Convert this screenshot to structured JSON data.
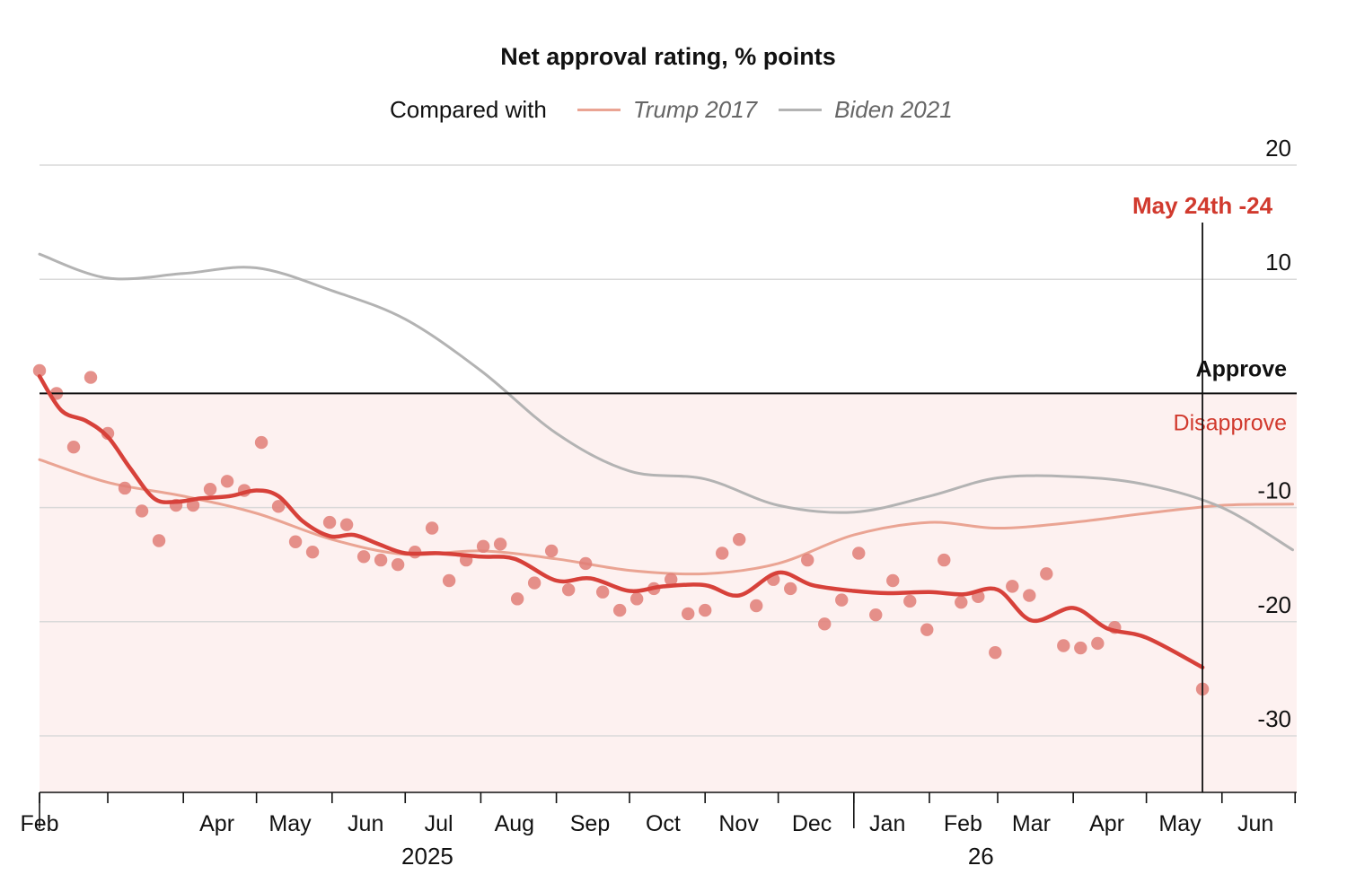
{
  "chart_data": {
    "type": "line",
    "title": "Net approval rating, % points",
    "legend_intro": "Compared with",
    "legend_placement": "top",
    "x_axis": {
      "start": "2025-02-01",
      "end": "2026-06-30",
      "month_ticks": [
        "2025-02-01",
        "2025-03-01",
        "2025-04-01",
        "2025-05-01",
        "2025-06-01",
        "2025-07-01",
        "2025-08-01",
        "2025-09-01",
        "2025-10-01",
        "2025-11-01",
        "2025-12-01",
        "2026-01-01",
        "2026-02-01",
        "2026-03-01",
        "2026-04-01",
        "2026-05-01",
        "2026-06-01",
        "2026-07-01"
      ],
      "month_labels": [
        {
          "date": "2025-02-01",
          "text": "Feb"
        },
        {
          "date": "2025-04-01",
          "text": "Apr"
        },
        {
          "date": "2025-05-01",
          "text": "May"
        },
        {
          "date": "2025-06-01",
          "text": "Jun"
        },
        {
          "date": "2025-07-01",
          "text": "Jul"
        },
        {
          "date": "2025-08-01",
          "text": "Aug"
        },
        {
          "date": "2025-09-01",
          "text": "Sep"
        },
        {
          "date": "2025-10-01",
          "text": "Oct"
        },
        {
          "date": "2025-11-01",
          "text": "Nov"
        },
        {
          "date": "2025-12-01",
          "text": "Dec"
        },
        {
          "date": "2026-01-01",
          "text": "Jan"
        },
        {
          "date": "2026-02-01",
          "text": "Feb"
        },
        {
          "date": "2026-03-01",
          "text": "Mar"
        },
        {
          "date": "2026-04-01",
          "text": "Apr"
        },
        {
          "date": "2026-05-01",
          "text": "May"
        },
        {
          "date": "2026-06-01",
          "text": "Jun"
        }
      ],
      "year_labels": [
        {
          "date": "2025-07-16",
          "text": "2025"
        },
        {
          "date": "2026-02-28",
          "text": "26"
        }
      ]
    },
    "y_axis": {
      "min": -35,
      "max": 20,
      "ticks": [
        20,
        10,
        -10,
        -20,
        -30
      ],
      "position": "right",
      "grid": true
    },
    "regions": [
      {
        "label": "Approve",
        "side": "above",
        "color": "#111111"
      },
      {
        "label": "Disapprove",
        "side": "below",
        "color": "#d13a2e",
        "fill": "#fdf1f0"
      }
    ],
    "annotation": {
      "date": "2026-05-24",
      "value": -24,
      "label": "May 24th -24"
    },
    "series": [
      {
        "name": "",
        "kind": "trend",
        "color": "#d7413a",
        "points": [
          [
            "2025-02-01",
            1.5
          ],
          [
            "2025-02-10",
            -1.5
          ],
          [
            "2025-02-20",
            -2.4
          ],
          [
            "2025-03-01",
            -3.8
          ],
          [
            "2025-03-10",
            -6.5
          ],
          [
            "2025-03-20",
            -9.2
          ],
          [
            "2025-03-29",
            -9.5
          ],
          [
            "2025-04-08",
            -9.2
          ],
          [
            "2025-04-20",
            -9.0
          ],
          [
            "2025-05-01",
            -8.5
          ],
          [
            "2025-05-10",
            -9.0
          ],
          [
            "2025-05-20",
            -11.2
          ],
          [
            "2025-05-31",
            -12.5
          ],
          [
            "2025-06-10",
            -12.4
          ],
          [
            "2025-06-20",
            -13.2
          ],
          [
            "2025-07-01",
            -14.0
          ],
          [
            "2025-07-15",
            -14.0
          ],
          [
            "2025-08-01",
            -14.3
          ],
          [
            "2025-08-15",
            -14.5
          ],
          [
            "2025-09-01",
            -16.4
          ],
          [
            "2025-09-15",
            -16.2
          ],
          [
            "2025-10-01",
            -17.3
          ],
          [
            "2025-10-15",
            -16.9
          ],
          [
            "2025-11-01",
            -16.8
          ],
          [
            "2025-11-15",
            -17.7
          ],
          [
            "2025-12-01",
            -15.7
          ],
          [
            "2025-12-15",
            -16.8
          ],
          [
            "2026-01-01",
            -17.3
          ],
          [
            "2026-01-15",
            -17.5
          ],
          [
            "2026-02-01",
            -17.4
          ],
          [
            "2026-02-15",
            -17.6
          ],
          [
            "2026-03-01",
            -17.2
          ],
          [
            "2026-03-15",
            -19.9
          ],
          [
            "2026-04-01",
            -18.8
          ],
          [
            "2026-04-15",
            -20.6
          ],
          [
            "2026-05-01",
            -21.4
          ],
          [
            "2026-05-24",
            -24.0
          ]
        ]
      },
      {
        "name": "",
        "kind": "polls",
        "color": "#e07e77",
        "points": [
          [
            "2025-02-01",
            2.0
          ],
          [
            "2025-02-08",
            0.0
          ],
          [
            "2025-02-15",
            -4.7
          ],
          [
            "2025-02-22",
            1.4
          ],
          [
            "2025-03-01",
            -3.5
          ],
          [
            "2025-03-08",
            -8.3
          ],
          [
            "2025-03-15",
            -10.3
          ],
          [
            "2025-03-22",
            -12.9
          ],
          [
            "2025-03-29",
            -9.8
          ],
          [
            "2025-04-05",
            -9.8
          ],
          [
            "2025-04-12",
            -8.4
          ],
          [
            "2025-04-19",
            -7.7
          ],
          [
            "2025-04-26",
            -8.5
          ],
          [
            "2025-05-03",
            -4.3
          ],
          [
            "2025-05-10",
            -9.9
          ],
          [
            "2025-05-17",
            -13.0
          ],
          [
            "2025-05-24",
            -13.9
          ],
          [
            "2025-05-31",
            -11.3
          ],
          [
            "2025-06-07",
            -11.5
          ],
          [
            "2025-06-14",
            -14.3
          ],
          [
            "2025-06-21",
            -14.6
          ],
          [
            "2025-06-28",
            -15.0
          ],
          [
            "2025-07-05",
            -13.9
          ],
          [
            "2025-07-12",
            -11.8
          ],
          [
            "2025-07-19",
            -16.4
          ],
          [
            "2025-07-26",
            -14.6
          ],
          [
            "2025-08-02",
            -13.4
          ],
          [
            "2025-08-09",
            -13.2
          ],
          [
            "2025-08-16",
            -18.0
          ],
          [
            "2025-08-23",
            -16.6
          ],
          [
            "2025-08-30",
            -13.8
          ],
          [
            "2025-09-06",
            -17.2
          ],
          [
            "2025-09-13",
            -14.9
          ],
          [
            "2025-09-20",
            -17.4
          ],
          [
            "2025-09-27",
            -19.0
          ],
          [
            "2025-10-04",
            -18.0
          ],
          [
            "2025-10-11",
            -17.1
          ],
          [
            "2025-10-18",
            -16.3
          ],
          [
            "2025-10-25",
            -19.3
          ],
          [
            "2025-11-01",
            -19.0
          ],
          [
            "2025-11-08",
            -14.0
          ],
          [
            "2025-11-15",
            -12.8
          ],
          [
            "2025-11-22",
            -18.6
          ],
          [
            "2025-11-29",
            -16.3
          ],
          [
            "2025-12-06",
            -17.1
          ],
          [
            "2025-12-13",
            -14.6
          ],
          [
            "2025-12-20",
            -20.2
          ],
          [
            "2025-12-27",
            -18.1
          ],
          [
            "2026-01-03",
            -14.0
          ],
          [
            "2026-01-10",
            -19.4
          ],
          [
            "2026-01-17",
            -16.4
          ],
          [
            "2026-01-24",
            -18.2
          ],
          [
            "2026-01-31",
            -20.7
          ],
          [
            "2026-02-07",
            -14.6
          ],
          [
            "2026-02-14",
            -18.3
          ],
          [
            "2026-02-21",
            -17.8
          ],
          [
            "2026-02-28",
            -22.7
          ],
          [
            "2026-03-07",
            -16.9
          ],
          [
            "2026-03-14",
            -17.7
          ],
          [
            "2026-03-21",
            -15.8
          ],
          [
            "2026-03-28",
            -22.1
          ],
          [
            "2026-04-04",
            -22.3
          ],
          [
            "2026-04-11",
            -21.9
          ],
          [
            "2026-04-18",
            -20.5
          ],
          [
            "2026-05-24",
            -25.9
          ]
        ]
      },
      {
        "name": "Trump 2017",
        "kind": "comparison",
        "color": "#eaa493",
        "points": [
          [
            "2025-02-01",
            -5.8
          ],
          [
            "2025-03-01",
            -7.8
          ],
          [
            "2025-04-01",
            -9.0
          ],
          [
            "2025-05-01",
            -10.5
          ],
          [
            "2025-06-01",
            -12.8
          ],
          [
            "2025-07-01",
            -14.1
          ],
          [
            "2025-08-01",
            -13.8
          ],
          [
            "2025-09-01",
            -14.5
          ],
          [
            "2025-10-01",
            -15.5
          ],
          [
            "2025-11-01",
            -15.8
          ],
          [
            "2025-12-01",
            -14.9
          ],
          [
            "2026-01-01",
            -12.4
          ],
          [
            "2026-02-01",
            -11.3
          ],
          [
            "2026-03-01",
            -11.8
          ],
          [
            "2026-04-01",
            -11.3
          ],
          [
            "2026-05-01",
            -10.5
          ],
          [
            "2026-06-01",
            -9.8
          ],
          [
            "2026-06-30",
            -9.7
          ]
        ]
      },
      {
        "name": "Biden 2021",
        "kind": "comparison",
        "color": "#b3b3b3",
        "points": [
          [
            "2025-02-01",
            12.2
          ],
          [
            "2025-03-01",
            10.1
          ],
          [
            "2025-04-01",
            10.5
          ],
          [
            "2025-05-01",
            11.0
          ],
          [
            "2025-06-01",
            9.0
          ],
          [
            "2025-07-01",
            6.5
          ],
          [
            "2025-08-01",
            2.0
          ],
          [
            "2025-09-01",
            -3.5
          ],
          [
            "2025-10-01",
            -6.8
          ],
          [
            "2025-11-01",
            -7.5
          ],
          [
            "2025-12-01",
            -9.8
          ],
          [
            "2026-01-01",
            -10.4
          ],
          [
            "2026-02-01",
            -9.0
          ],
          [
            "2026-03-01",
            -7.4
          ],
          [
            "2026-04-01",
            -7.3
          ],
          [
            "2026-05-01",
            -8.0
          ],
          [
            "2026-06-01",
            -10.0
          ],
          [
            "2026-06-30",
            -13.7
          ]
        ]
      }
    ]
  }
}
